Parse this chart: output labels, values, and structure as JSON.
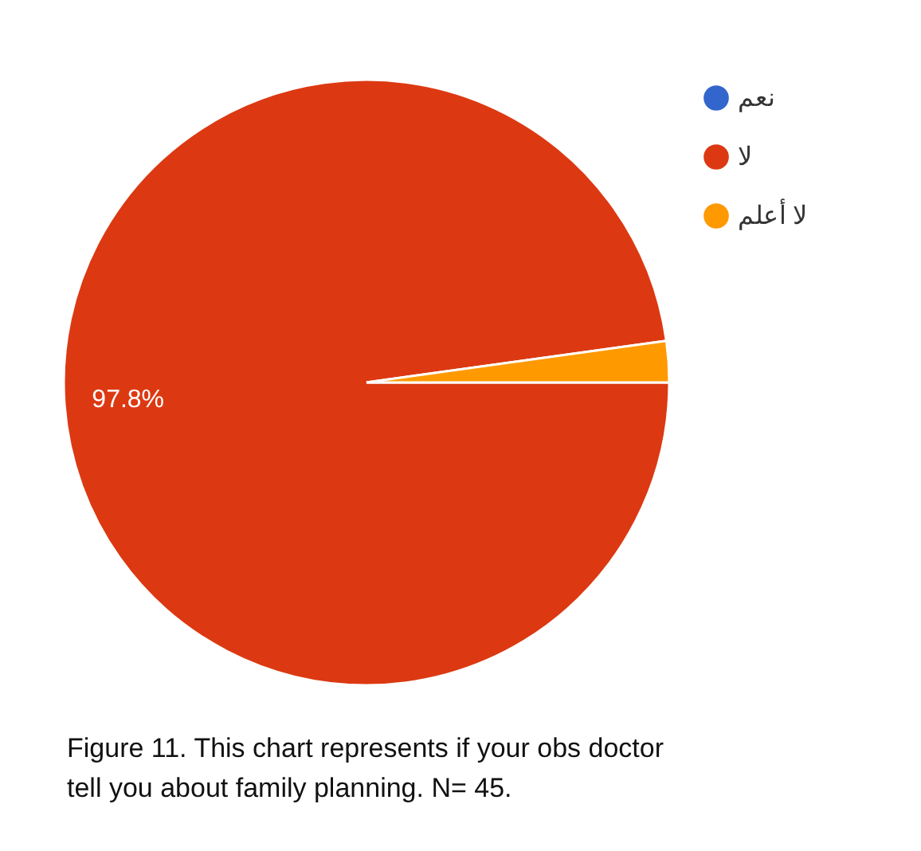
{
  "chart_data": {
    "type": "pie",
    "categories": [
      "نعم",
      "لا",
      "لا أعلم"
    ],
    "values": [
      0,
      97.8,
      2.2
    ],
    "colors": [
      "#3366cc",
      "#dc3912",
      "#ff9900"
    ],
    "value_labels": [
      null,
      "97.8%",
      null
    ],
    "legend": "top right",
    "annotations": [
      "Figure 11. This chart represents if your obs doctor tell you about family planning. N= 45."
    ]
  }
}
